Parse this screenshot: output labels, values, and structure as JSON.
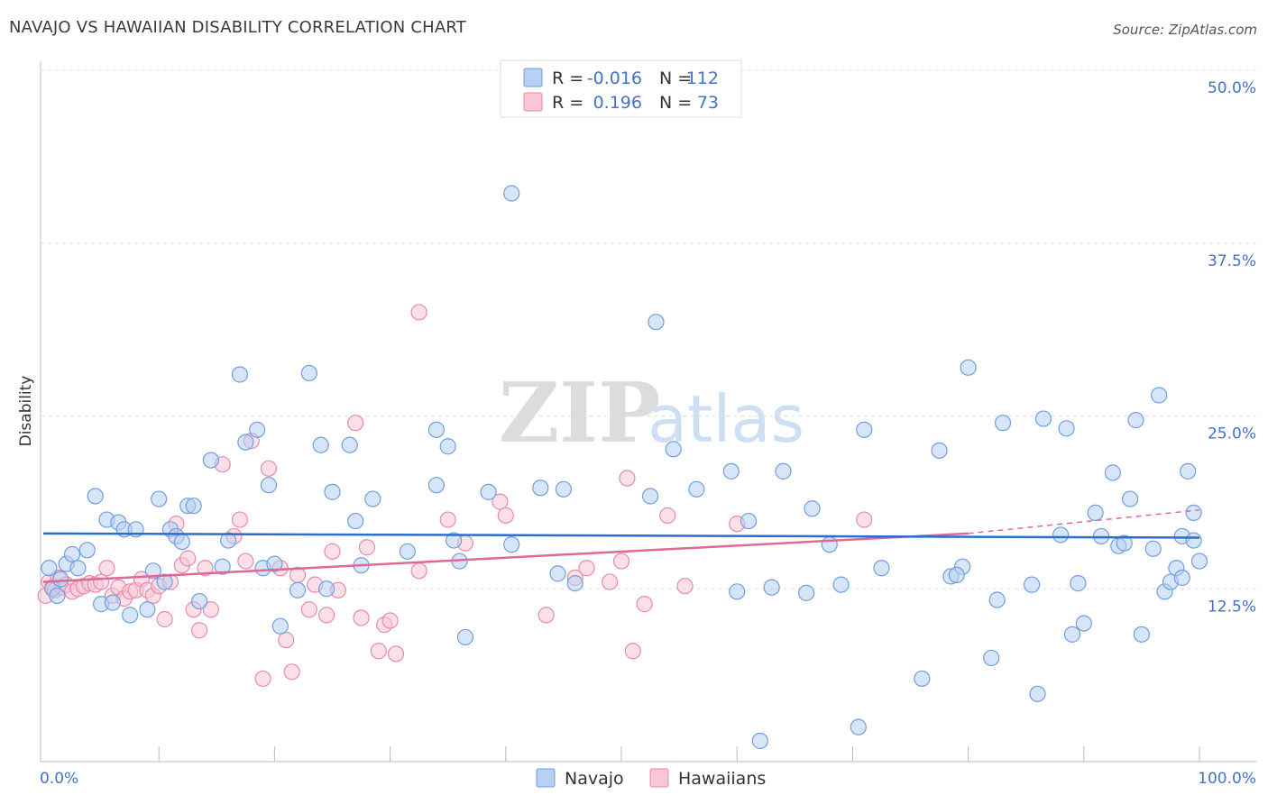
{
  "title": "NAVAJO VS HAWAIIAN DISABILITY CORRELATION CHART",
  "source": "Source: ZipAtlas.com",
  "watermark": {
    "zip": "ZIP",
    "atlas": "atlas"
  },
  "colors": {
    "navajo_fill": "#b7d0f3",
    "navajo_stroke": "#6f9fde",
    "navajo_line": "#2a6fd0",
    "hawaiian_fill": "#f8c6d6",
    "hawaiian_stroke": "#e88aab",
    "hawaiian_line": "#e0679a",
    "tick_text": "#4472c4",
    "grid": "#dddddd"
  },
  "legend_top": {
    "rows": [
      {
        "r_label": "R =",
        "r_value": "-0.016",
        "n_label": "N =",
        "n_value": "112"
      },
      {
        "r_label": "R =",
        "r_value": "0.196",
        "n_label": "N =",
        "n_value": "73"
      }
    ]
  },
  "legend_bottom": [
    "Navajo",
    "Hawaiians"
  ],
  "chart_data": {
    "type": "scatter",
    "title": "NAVAJO VS HAWAIIAN DISABILITY CORRELATION CHART",
    "xlabel": "",
    "ylabel": "Disability",
    "xlim": [
      0,
      100
    ],
    "ylim": [
      0,
      50
    ],
    "x_tick_labels": [
      "0.0%",
      "100.0%"
    ],
    "y_ticks": [
      12.5,
      25.0,
      37.5,
      50.0
    ],
    "y_tick_labels": [
      "12.5%",
      "25.0%",
      "37.5%",
      "50.0%"
    ],
    "grid": "horizontal dashed",
    "legend": "top-center and bottom-center",
    "series": [
      {
        "name": "Navajo",
        "r": -0.016,
        "n": 112,
        "trend": {
          "x": [
            0,
            100
          ],
          "y": [
            16.5,
            16.2
          ]
        },
        "points": [
          [
            0.5,
            14.0
          ],
          [
            0.8,
            12.5
          ],
          [
            1.2,
            12.0
          ],
          [
            1.5,
            13.2
          ],
          [
            2.0,
            14.3
          ],
          [
            2.5,
            15.0
          ],
          [
            3.0,
            14.0
          ],
          [
            3.8,
            15.3
          ],
          [
            4.5,
            19.2
          ],
          [
            5.0,
            11.4
          ],
          [
            5.5,
            17.5
          ],
          [
            6.0,
            11.5
          ],
          [
            6.5,
            17.3
          ],
          [
            7.0,
            16.8
          ],
          [
            7.5,
            10.6
          ],
          [
            8.0,
            16.8
          ],
          [
            9.0,
            11.0
          ],
          [
            9.5,
            13.8
          ],
          [
            10.0,
            19.0
          ],
          [
            10.5,
            13.0
          ],
          [
            11.0,
            16.8
          ],
          [
            11.5,
            16.3
          ],
          [
            12.0,
            15.9
          ],
          [
            12.5,
            18.5
          ],
          [
            13.0,
            18.5
          ],
          [
            13.5,
            11.6
          ],
          [
            14.5,
            21.8
          ],
          [
            15.5,
            14.1
          ],
          [
            16.0,
            16.0
          ],
          [
            17.0,
            28.0
          ],
          [
            17.5,
            23.1
          ],
          [
            18.5,
            24.0
          ],
          [
            19.0,
            14.0
          ],
          [
            19.5,
            20.0
          ],
          [
            20.0,
            14.3
          ],
          [
            20.5,
            9.8
          ],
          [
            22.0,
            12.4
          ],
          [
            23.0,
            28.1
          ],
          [
            24.0,
            22.9
          ],
          [
            24.5,
            12.5
          ],
          [
            25.0,
            19.5
          ],
          [
            26.5,
            22.9
          ],
          [
            27.0,
            17.4
          ],
          [
            27.5,
            14.2
          ],
          [
            28.5,
            19.0
          ],
          [
            31.5,
            15.2
          ],
          [
            34.0,
            24.0
          ],
          [
            34.0,
            20.0
          ],
          [
            35.0,
            22.8
          ],
          [
            35.5,
            16.0
          ],
          [
            36.0,
            14.5
          ],
          [
            36.5,
            9.0
          ],
          [
            38.5,
            19.5
          ],
          [
            40.5,
            41.1
          ],
          [
            40.5,
            15.7
          ],
          [
            43.0,
            19.8
          ],
          [
            44.5,
            13.6
          ],
          [
            45.0,
            19.7
          ],
          [
            46.0,
            12.9
          ],
          [
            53.0,
            31.8
          ],
          [
            52.5,
            19.2
          ],
          [
            54.5,
            22.6
          ],
          [
            56.5,
            19.7
          ],
          [
            59.5,
            21.0
          ],
          [
            61.0,
            17.4
          ],
          [
            64.0,
            21.0
          ],
          [
            66.0,
            12.2
          ],
          [
            66.5,
            18.3
          ],
          [
            68.0,
            15.7
          ],
          [
            69.0,
            12.8
          ],
          [
            70.5,
            2.5
          ],
          [
            71.0,
            24.0
          ],
          [
            72.5,
            14.0
          ],
          [
            76.0,
            6.0
          ],
          [
            77.5,
            22.5
          ],
          [
            78.5,
            13.4
          ],
          [
            79.5,
            14.1
          ],
          [
            80.0,
            28.5
          ],
          [
            82.0,
            7.5
          ],
          [
            82.5,
            11.7
          ],
          [
            83.0,
            24.5
          ],
          [
            85.5,
            12.8
          ],
          [
            86.0,
            4.9
          ],
          [
            86.5,
            24.8
          ],
          [
            88.0,
            16.4
          ],
          [
            88.5,
            24.1
          ],
          [
            89.0,
            9.2
          ],
          [
            89.5,
            12.9
          ],
          [
            90.0,
            10.0
          ],
          [
            91.0,
            18.0
          ],
          [
            91.5,
            16.3
          ],
          [
            92.5,
            20.9
          ],
          [
            93.0,
            15.6
          ],
          [
            93.5,
            15.8
          ],
          [
            94.0,
            19.0
          ],
          [
            94.5,
            24.7
          ],
          [
            95.0,
            9.2
          ],
          [
            96.0,
            15.4
          ],
          [
            96.5,
            26.5
          ],
          [
            97.0,
            12.3
          ],
          [
            97.5,
            13.0
          ],
          [
            98.0,
            14.0
          ],
          [
            98.5,
            13.3
          ],
          [
            98.5,
            16.3
          ],
          [
            99.0,
            21.0
          ],
          [
            99.5,
            18.0
          ],
          [
            99.5,
            16.0
          ],
          [
            100.0,
            14.5
          ],
          [
            63.0,
            12.6
          ],
          [
            60.0,
            12.3
          ],
          [
            62.0,
            1.5
          ],
          [
            79.0,
            13.5
          ]
        ]
      },
      {
        "name": "Hawaiians",
        "r": 0.196,
        "n": 73,
        "trend": {
          "x": [
            0,
            80
          ],
          "y": [
            13.0,
            16.5
          ]
        },
        "trend_dashed": {
          "x": [
            80,
            100
          ],
          "y": [
            16.5,
            18.2
          ]
        },
        "points": [
          [
            0.2,
            12.0
          ],
          [
            0.5,
            13.0
          ],
          [
            0.8,
            12.6
          ],
          [
            1.0,
            12.4
          ],
          [
            1.3,
            13.3
          ],
          [
            1.6,
            12.6
          ],
          [
            2.0,
            12.8
          ],
          [
            2.5,
            12.3
          ],
          [
            3.0,
            12.5
          ],
          [
            3.5,
            12.7
          ],
          [
            4.0,
            12.9
          ],
          [
            4.5,
            12.8
          ],
          [
            5.0,
            13.0
          ],
          [
            5.5,
            14.0
          ],
          [
            6.0,
            12.0
          ],
          [
            6.5,
            12.6
          ],
          [
            7.0,
            11.8
          ],
          [
            7.5,
            12.3
          ],
          [
            8.0,
            12.4
          ],
          [
            8.5,
            13.2
          ],
          [
            9.0,
            12.4
          ],
          [
            9.5,
            12.0
          ],
          [
            10.0,
            12.7
          ],
          [
            10.5,
            10.3
          ],
          [
            11.0,
            13.0
          ],
          [
            11.5,
            17.2
          ],
          [
            12.0,
            14.2
          ],
          [
            12.5,
            14.7
          ],
          [
            13.0,
            11.0
          ],
          [
            13.5,
            9.5
          ],
          [
            14.0,
            14.0
          ],
          [
            14.5,
            11.0
          ],
          [
            15.5,
            21.5
          ],
          [
            16.5,
            16.3
          ],
          [
            17.0,
            17.5
          ],
          [
            17.5,
            14.5
          ],
          [
            18.0,
            23.2
          ],
          [
            19.0,
            6.0
          ],
          [
            19.5,
            21.2
          ],
          [
            20.5,
            14.0
          ],
          [
            21.0,
            8.8
          ],
          [
            21.5,
            6.5
          ],
          [
            22.0,
            13.5
          ],
          [
            23.0,
            11.0
          ],
          [
            23.5,
            12.8
          ],
          [
            24.5,
            10.6
          ],
          [
            25.0,
            15.2
          ],
          [
            25.5,
            12.4
          ],
          [
            27.0,
            24.5
          ],
          [
            27.5,
            10.4
          ],
          [
            28.0,
            15.5
          ],
          [
            29.0,
            8.0
          ],
          [
            29.5,
            9.9
          ],
          [
            30.0,
            10.2
          ],
          [
            30.5,
            7.8
          ],
          [
            32.5,
            13.8
          ],
          [
            32.5,
            32.5
          ],
          [
            35.0,
            17.5
          ],
          [
            36.5,
            15.8
          ],
          [
            39.5,
            18.8
          ],
          [
            40.0,
            17.8
          ],
          [
            43.5,
            10.6
          ],
          [
            46.0,
            13.3
          ],
          [
            47.0,
            14.0
          ],
          [
            49.0,
            13.0
          ],
          [
            50.0,
            14.5
          ],
          [
            50.5,
            20.5
          ],
          [
            51.0,
            8.0
          ],
          [
            52.0,
            11.4
          ],
          [
            54.0,
            17.8
          ],
          [
            55.5,
            12.7
          ],
          [
            60.0,
            17.2
          ],
          [
            71.0,
            17.5
          ]
        ]
      }
    ]
  }
}
